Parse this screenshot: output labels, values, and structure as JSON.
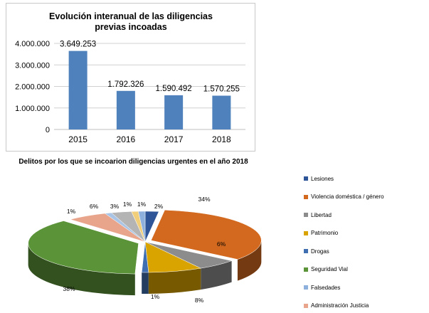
{
  "chart_data": [
    {
      "type": "bar",
      "title": "Evolución interanual de las diligencias previas incoadas",
      "categories": [
        "2015",
        "2016",
        "2017",
        "2018"
      ],
      "values": [
        3649253,
        1792326,
        1590492,
        1570255
      ],
      "value_labels": [
        "3.649.253",
        "1.792.326",
        "1.590.492",
        "1.570.255"
      ],
      "y_ticks": [
        0,
        1000000,
        2000000,
        3000000,
        4000000
      ],
      "y_tick_labels": [
        "0",
        "1.000.000",
        "2.000.000",
        "3.000.000",
        "4.000.000"
      ],
      "ylim": [
        0,
        4000000
      ],
      "grid": true,
      "bar_color": "#4f81bd"
    },
    {
      "type": "pie",
      "style": "3d exploded",
      "title": "Delitos por los que se incoarion diligencias urgentes en el año 2018",
      "legend_position": "right",
      "slices": [
        {
          "label": "Lesiones",
          "value": 2,
          "value_label": "2%",
          "color": "#2e5597"
        },
        {
          "label": "Violencia doméstica / género",
          "value": 34,
          "value_label": "34%",
          "color": "#d2691e"
        },
        {
          "label": "Libertad",
          "value": 6,
          "value_label": "6%",
          "color": "#8c8c8c"
        },
        {
          "label": "Patrimonio",
          "value": 8,
          "value_label": "8%",
          "color": "#d9a300"
        },
        {
          "label": "Drogas",
          "value": 1,
          "value_label": "1%",
          "color": "#3f6fb0"
        },
        {
          "label": "Seguridad Vial",
          "value": 38,
          "value_label": "38%",
          "color": "#5b9339"
        },
        {
          "label": "Falsedades",
          "value": 1,
          "value_label": "1%",
          "color": "#8db0dc"
        },
        {
          "label": "Administración Justicia",
          "value": 6,
          "value_label": "6%",
          "color": "#e8a58c"
        },
        {
          "label": "",
          "value": 1,
          "value_label": "1%",
          "color": "#a9c4e4"
        },
        {
          "label": "",
          "value": 3,
          "value_label": "3%",
          "color": "#b4b4b4"
        },
        {
          "label": "",
          "value": 1,
          "value_label": "1%",
          "color": "#f1cf7a"
        }
      ]
    }
  ]
}
